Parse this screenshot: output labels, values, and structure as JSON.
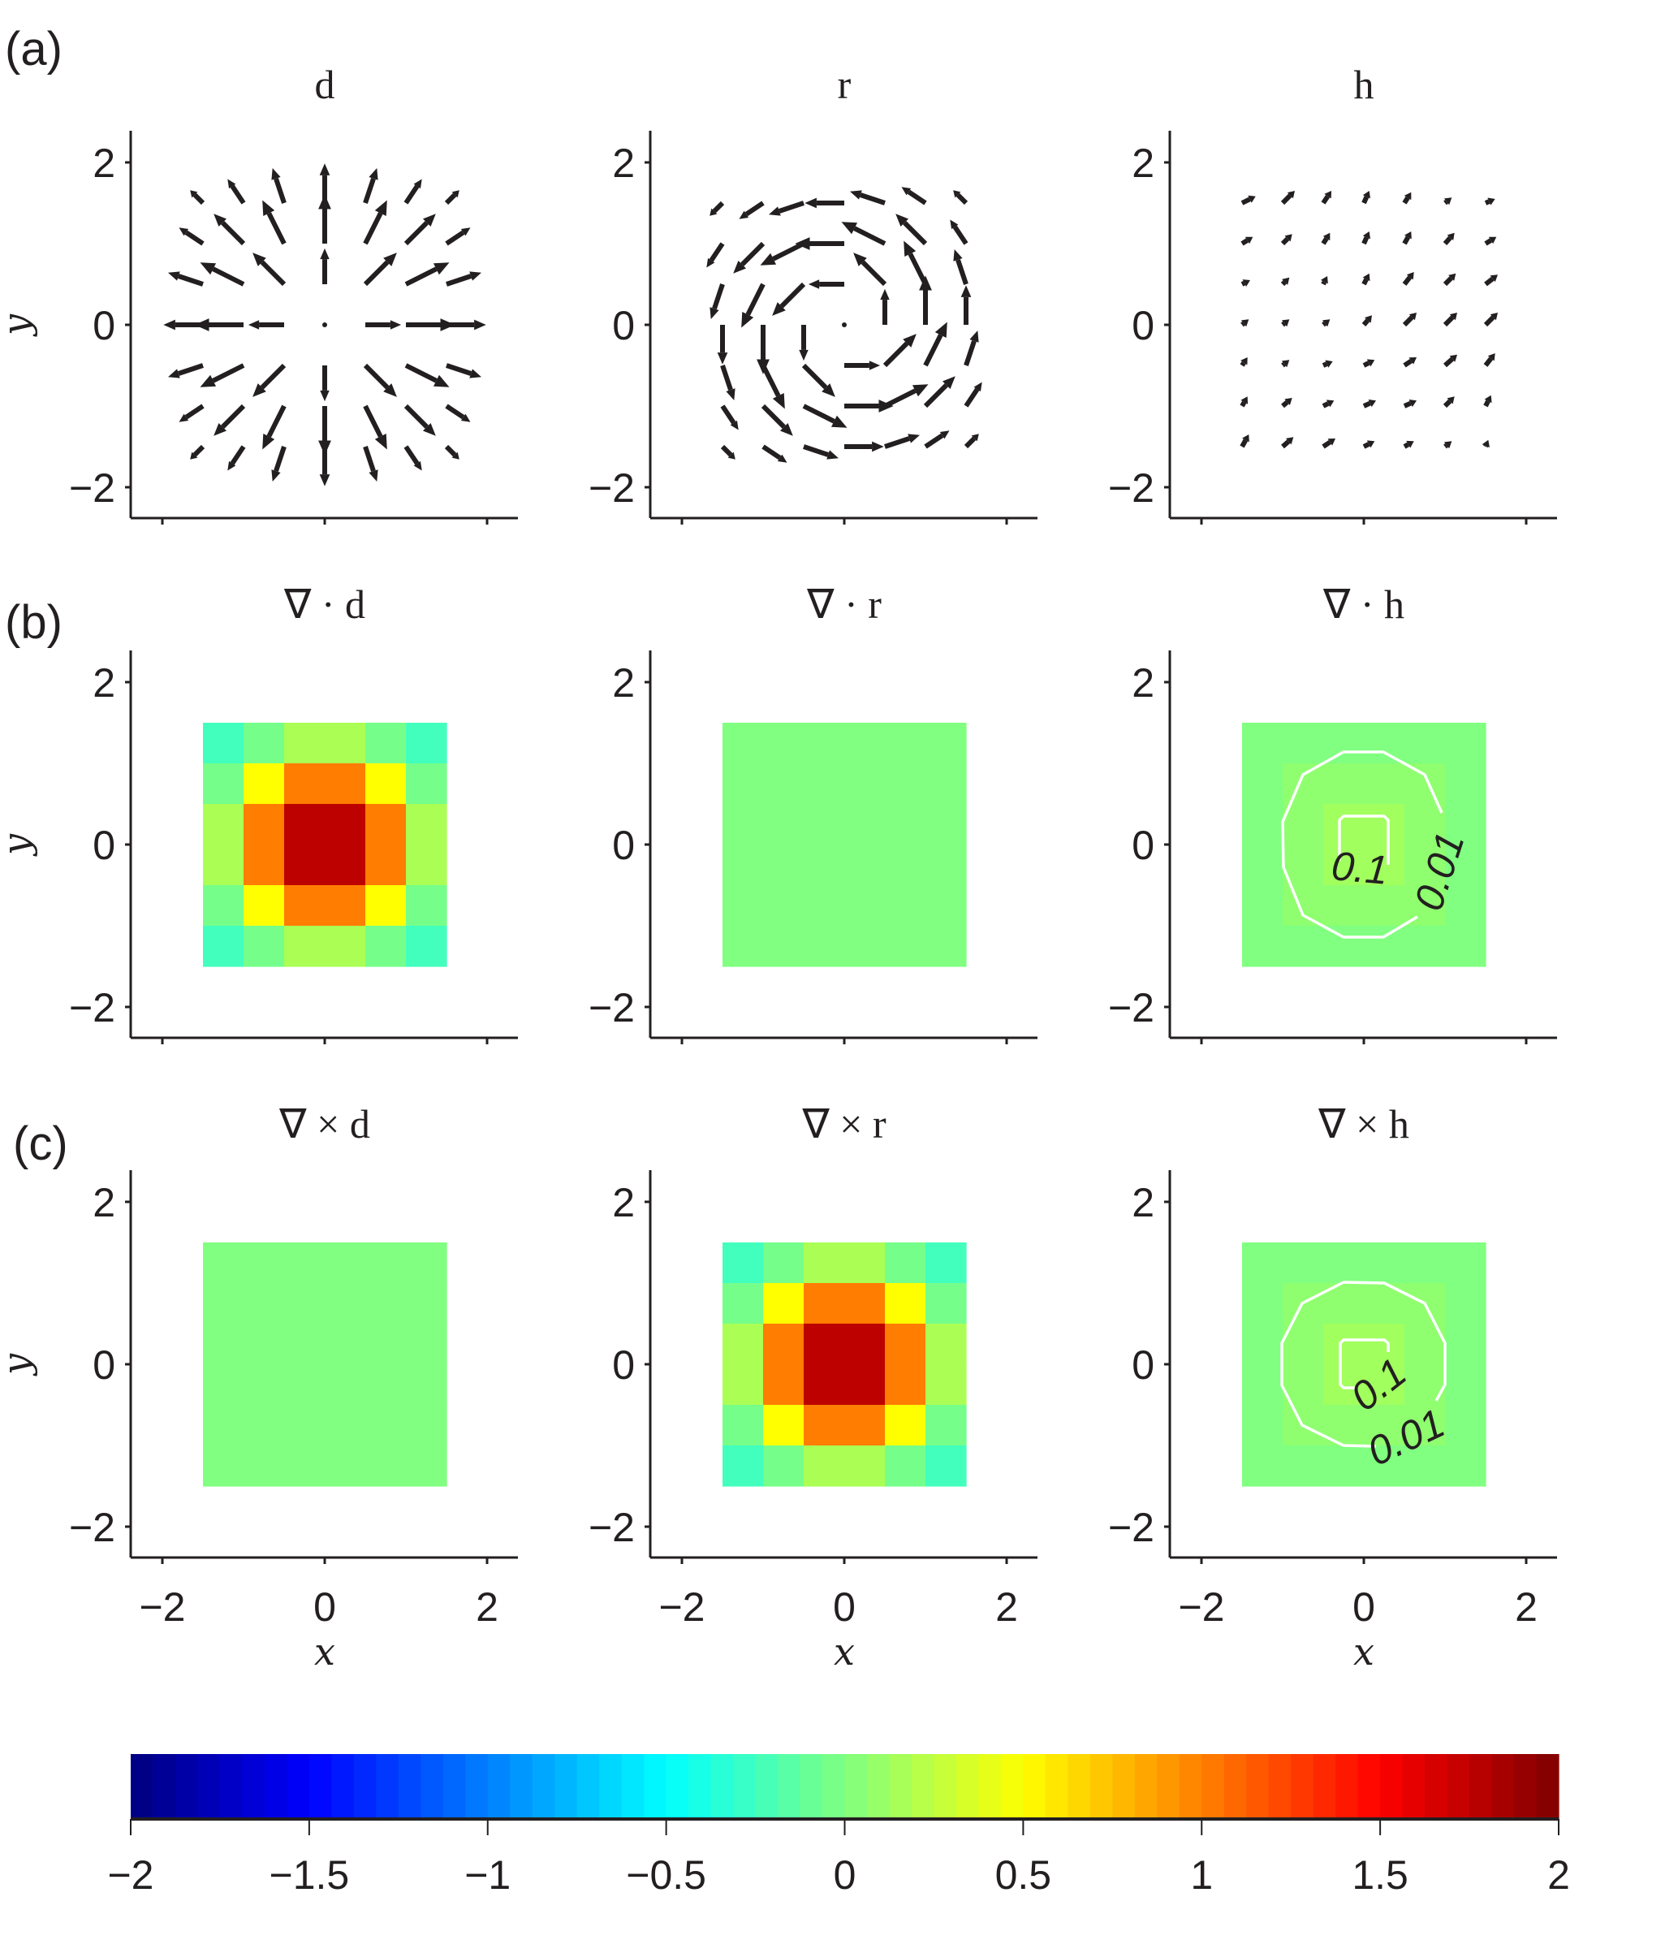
{
  "panel_labels": [
    "(a)",
    "(b)",
    "(c)"
  ],
  "chart_data": {
    "type": "multi-panel quiver / heatmap",
    "xlabel": "x",
    "ylabel": "y",
    "xlim": [
      -2.4,
      2.4
    ],
    "ylim": [
      -2.4,
      2.4
    ],
    "xticks": [
      -2,
      0,
      2
    ],
    "yticks": [
      -2,
      0,
      2
    ],
    "xtick_labels": [
      "−2",
      "0",
      "2"
    ],
    "ytick_labels": [
      "−2",
      "0",
      "2"
    ],
    "grid_x": [
      -1.5,
      -1,
      -0.5,
      0,
      0.5,
      1,
      1.5
    ],
    "grid_y": [
      -1.5,
      -1,
      -0.5,
      0,
      0.5,
      1,
      1.5
    ],
    "cell_edges": [
      -1.5,
      -1,
      -0.5,
      0,
      0.5,
      1,
      1.5
    ],
    "quiver": [
      {
        "title": "d",
        "u": [
          [
            -0.158,
            -0.197,
            -0.143,
            0,
            0.143,
            0.197,
            0.158
          ],
          [
            -0.295,
            -0.368,
            -0.268,
            0,
            0.268,
            0.368,
            0.295
          ],
          [
            -0.43,
            -0.535,
            -0.389,
            0,
            0.389,
            0.535,
            0.43
          ],
          [
            -0.487,
            -0.607,
            -0.441,
            0,
            0.441,
            0.607,
            0.487
          ],
          [
            -0.43,
            -0.535,
            -0.389,
            0,
            0.389,
            0.535,
            0.43
          ],
          [
            -0.295,
            -0.368,
            -0.268,
            0,
            0.268,
            0.368,
            0.295
          ],
          [
            -0.158,
            -0.197,
            -0.143,
            0,
            0.143,
            0.197,
            0.158
          ]
        ],
        "v": [
          [
            -0.158,
            -0.295,
            -0.43,
            -0.487,
            -0.43,
            -0.295,
            -0.158
          ],
          [
            -0.197,
            -0.368,
            -0.535,
            -0.607,
            -0.535,
            -0.368,
            -0.197
          ],
          [
            -0.143,
            -0.268,
            -0.389,
            -0.441,
            -0.389,
            -0.268,
            -0.143
          ],
          [
            0,
            0,
            0,
            0,
            0,
            0,
            0
          ],
          [
            0.143,
            0.268,
            0.389,
            0.441,
            0.389,
            0.268,
            0.143
          ],
          [
            0.197,
            0.368,
            0.535,
            0.607,
            0.535,
            0.368,
            0.197
          ],
          [
            0.158,
            0.295,
            0.43,
            0.487,
            0.43,
            0.295,
            0.158
          ]
        ]
      },
      {
        "title": "r",
        "u": [
          [
            0.158,
            0.295,
            0.43,
            0.487,
            0.43,
            0.295,
            0.158
          ],
          [
            0.197,
            0.368,
            0.535,
            0.607,
            0.535,
            0.368,
            0.197
          ],
          [
            0.143,
            0.268,
            0.389,
            0.441,
            0.389,
            0.268,
            0.143
          ],
          [
            0,
            0,
            0,
            0,
            0,
            0,
            0
          ],
          [
            -0.143,
            -0.268,
            -0.389,
            -0.441,
            -0.389,
            -0.268,
            -0.143
          ],
          [
            -0.197,
            -0.368,
            -0.535,
            -0.607,
            -0.535,
            -0.368,
            -0.197
          ],
          [
            -0.158,
            -0.295,
            -0.43,
            -0.487,
            -0.43,
            -0.295,
            -0.158
          ]
        ],
        "v": [
          [
            -0.158,
            -0.197,
            -0.143,
            0,
            0.143,
            0.197,
            0.158
          ],
          [
            -0.295,
            -0.368,
            -0.268,
            0,
            0.268,
            0.368,
            0.295
          ],
          [
            -0.43,
            -0.535,
            -0.389,
            0,
            0.389,
            0.535,
            0.43
          ],
          [
            -0.487,
            -0.607,
            -0.441,
            0,
            0.441,
            0.607,
            0.487
          ],
          [
            -0.43,
            -0.535,
            -0.389,
            0,
            0.389,
            0.535,
            0.43
          ],
          [
            -0.295,
            -0.368,
            -0.268,
            0,
            0.268,
            0.368,
            0.295
          ],
          [
            -0.158,
            -0.197,
            -0.143,
            0,
            0.143,
            0.197,
            0.158
          ]
        ]
      },
      {
        "title": "h",
        "u": [
          [
            0.083,
            0.133,
            0.15,
            0.133,
            0.117,
            0.083,
            0.033
          ],
          [
            0.067,
            0.117,
            0.133,
            0.15,
            0.15,
            0.117,
            0.067
          ],
          [
            0.067,
            0.083,
            0.117,
            0.133,
            0.15,
            0.15,
            0.117
          ],
          [
            0.083,
            0.083,
            0.083,
            0.1,
            0.15,
            0.15,
            0.15
          ],
          [
            0.1,
            0.083,
            0.05,
            0.067,
            0.117,
            0.133,
            0.15
          ],
          [
            0.133,
            0.117,
            0.083,
            0.067,
            0.083,
            0.117,
            0.133
          ],
          [
            0.167,
            0.15,
            0.1,
            0.067,
            0.083,
            0.083,
            0.117
          ]
        ],
        "v": [
          [
            0.15,
            0.117,
            0.1,
            0.067,
            0.067,
            0.067,
            0.083
          ],
          [
            0.117,
            0.1,
            0.067,
            0.067,
            0.067,
            0.117,
            0.133
          ],
          [
            0.1,
            0.067,
            0.05,
            0.067,
            0.1,
            0.133,
            0.15
          ],
          [
            0.067,
            0.067,
            0.067,
            0.117,
            0.15,
            0.15,
            0.15
          ],
          [
            0.05,
            0.083,
            0.1,
            0.133,
            0.15,
            0.133,
            0.117
          ],
          [
            0.083,
            0.117,
            0.133,
            0.15,
            0.15,
            0.133,
            0.083
          ],
          [
            0.083,
            0.15,
            0.15,
            0.15,
            0.133,
            0.067,
            0.05
          ]
        ]
      }
    ],
    "heatmaps": [
      {
        "title": "∇ · d",
        "values": [
          [
            -0.24,
            -0.04,
            0.17,
            0.17,
            -0.04,
            -0.24
          ],
          [
            -0.04,
            0.5,
            1.01,
            1.01,
            0.5,
            -0.04
          ],
          [
            0.17,
            1.01,
            1.76,
            1.76,
            1.01,
            0.17
          ],
          [
            0.17,
            1.01,
            1.76,
            1.76,
            1.01,
            0.17
          ],
          [
            -0.04,
            0.5,
            1.01,
            1.01,
            0.5,
            -0.04
          ],
          [
            -0.24,
            -0.04,
            0.17,
            0.17,
            -0.04,
            -0.24
          ]
        ],
        "contours": []
      },
      {
        "title": "∇ · r",
        "values": [
          [
            0,
            0,
            0,
            0,
            0,
            0
          ],
          [
            0,
            0,
            0,
            0,
            0,
            0
          ],
          [
            0,
            0,
            0,
            0,
            0,
            0
          ],
          [
            0,
            0,
            0,
            0,
            0,
            0
          ],
          [
            0,
            0,
            0,
            0,
            0,
            0
          ],
          [
            0,
            0,
            0,
            0,
            0,
            0
          ]
        ],
        "contours": []
      },
      {
        "title": "∇ · h",
        "values": [
          [
            0,
            0,
            0,
            0,
            0,
            0
          ],
          [
            0,
            0.06,
            0.06,
            0.06,
            0.06,
            0
          ],
          [
            0,
            0.06,
            0.13,
            0.13,
            0.06,
            0
          ],
          [
            0,
            0.06,
            0.13,
            0.13,
            0.06,
            0
          ],
          [
            0,
            0.06,
            0.06,
            0.06,
            0.06,
            0
          ],
          [
            0,
            0,
            0,
            0,
            0,
            0
          ]
        ],
        "contours": [
          {
            "level": "0.01",
            "label": "0.01",
            "label_at": [
              0.93,
              -0.33
            ],
            "label_angle": -72,
            "path": [
              [
                0.96,
                0.39
              ],
              [
                0.75,
                0.86
              ],
              [
                0.24,
                1.14
              ],
              [
                -0.25,
                1.14
              ],
              [
                -0.75,
                0.86
              ],
              [
                -1.0,
                0.28
              ],
              [
                -0.99,
                -0.28
              ],
              [
                -0.75,
                -0.87
              ],
              [
                -0.25,
                -1.14
              ],
              [
                0.24,
                -1.14
              ],
              [
                0.66,
                -0.89
              ]
            ]
          },
          {
            "level": "0.1",
            "label": "0.1",
            "label_at": [
              -0.05,
              -0.29
            ],
            "label_angle": 5,
            "path": [
              [
                -0.3,
                -0.2
              ],
              [
                -0.3,
                0.3
              ],
              [
                -0.25,
                0.35
              ],
              [
                0.25,
                0.35
              ],
              [
                0.3,
                0.3
              ],
              [
                0.3,
                -0.25
              ]
            ]
          }
        ]
      },
      {
        "title": "∇ × d",
        "values": [
          [
            0,
            0,
            0,
            0,
            0,
            0
          ],
          [
            0,
            0,
            0,
            0,
            0,
            0
          ],
          [
            0,
            0,
            0,
            0,
            0,
            0
          ],
          [
            0,
            0,
            0,
            0,
            0,
            0
          ],
          [
            0,
            0,
            0,
            0,
            0,
            0
          ],
          [
            0,
            0,
            0,
            0,
            0,
            0
          ]
        ],
        "contours": []
      },
      {
        "title": "∇ × r",
        "values": [
          [
            -0.24,
            -0.04,
            0.17,
            0.17,
            -0.04,
            -0.24
          ],
          [
            -0.04,
            0.5,
            1.01,
            1.01,
            0.5,
            -0.04
          ],
          [
            0.17,
            1.01,
            1.76,
            1.76,
            1.01,
            0.17
          ],
          [
            0.17,
            1.01,
            1.76,
            1.76,
            1.01,
            0.17
          ],
          [
            -0.04,
            0.5,
            1.01,
            1.01,
            0.5,
            -0.04
          ],
          [
            -0.24,
            -0.04,
            0.17,
            0.17,
            -0.04,
            -0.24
          ]
        ],
        "contours": []
      },
      {
        "title": "∇ × h",
        "values": [
          [
            0,
            0,
            0,
            0,
            0,
            0
          ],
          [
            0,
            0.06,
            0.06,
            0.06,
            0.06,
            0
          ],
          [
            0,
            0.06,
            0.13,
            0.13,
            0.06,
            0
          ],
          [
            0,
            0.06,
            0.13,
            0.13,
            0.06,
            0
          ],
          [
            0,
            0.06,
            0.06,
            0.06,
            0.06,
            0
          ],
          [
            0,
            0,
            0,
            0,
            0,
            0
          ]
        ],
        "contours": [
          {
            "level": "0.01",
            "label": "0.01",
            "label_at": [
              0.52,
              -0.9
            ],
            "label_angle": -25,
            "path": [
              [
                0.89,
                -0.45
              ],
              [
                1.0,
                -0.25
              ],
              [
                1.0,
                0.26
              ],
              [
                0.75,
                0.75
              ],
              [
                0.25,
                1.0
              ],
              [
                -0.25,
                1.01
              ],
              [
                -0.76,
                0.75
              ],
              [
                -1.01,
                0.26
              ],
              [
                -1.01,
                -0.26
              ],
              [
                -0.76,
                -0.75
              ],
              [
                -0.25,
                -1.0
              ],
              [
                0.15,
                -1.01
              ]
            ]
          },
          {
            "level": "0.1",
            "label": "0.1",
            "label_at": [
              0.18,
              -0.25
            ],
            "label_angle": -38,
            "path": [
              [
                -0.11,
                -0.29
              ],
              [
                -0.25,
                -0.29
              ],
              [
                -0.29,
                -0.25
              ],
              [
                -0.29,
                0.26
              ],
              [
                -0.25,
                0.3
              ],
              [
                0.25,
                0.3
              ],
              [
                0.3,
                0.26
              ],
              [
                0.3,
                0.15
              ]
            ]
          }
        ]
      }
    ],
    "colorbar": {
      "colormap": "jet",
      "range": [
        -2,
        2
      ],
      "levels": 64,
      "ticks": [
        -2,
        -1.5,
        -1,
        -0.5,
        0,
        0.5,
        1,
        1.5,
        2
      ],
      "tick_labels": [
        "−2",
        "−1.5",
        "−1",
        "−0.5",
        "0",
        "0.5",
        "1",
        "1.5",
        "2"
      ]
    },
    "colors": {
      "ink": "#231f20",
      "contour": "#ffffff"
    }
  }
}
